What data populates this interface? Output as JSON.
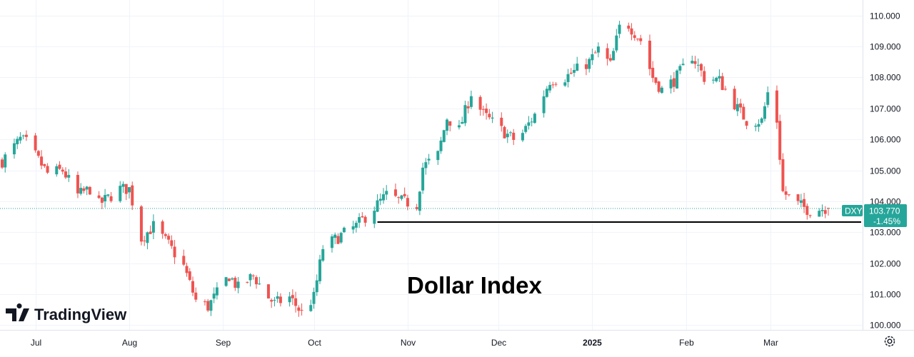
{
  "brand": {
    "name": "TradingView"
  },
  "annotation": "Dollar Index",
  "price_tag": {
    "symbol": "DXY",
    "price": "103.770",
    "change": "-1.45%"
  },
  "colors": {
    "up": "#26a69a",
    "down": "#ef5350",
    "grid": "#f0f3fa",
    "tag": "#26a69a",
    "support_line": "#000000",
    "last_price_line": "#26a69a"
  },
  "settings_icon": "gear-icon",
  "chart_data": {
    "type": "candlestick",
    "title": "",
    "instrument": "DXY",
    "y_ticks": [
      "110.000",
      "109.000",
      "108.000",
      "107.000",
      "106.000",
      "105.000",
      "104.000",
      "103.000",
      "102.000",
      "101.000",
      "100.000"
    ],
    "ylim": [
      99.85,
      110.5
    ],
    "x_ticks": [
      {
        "label": "Jul",
        "date": "2024-07-01",
        "bold": false
      },
      {
        "label": "Aug",
        "date": "2024-08-01",
        "bold": false
      },
      {
        "label": "Sep",
        "date": "2024-09-01",
        "bold": false
      },
      {
        "label": "Oct",
        "date": "2024-10-01",
        "bold": false
      },
      {
        "label": "Nov",
        "date": "2024-11-01",
        "bold": false
      },
      {
        "label": "Dec",
        "date": "2024-12-01",
        "bold": false
      },
      {
        "label": "2025",
        "date": "2025-01-01",
        "bold": true
      },
      {
        "label": "Feb",
        "date": "2025-02-01",
        "bold": false
      },
      {
        "label": "Mar",
        "date": "2025-03-01",
        "bold": false
      }
    ],
    "grid": true,
    "last_price": 103.77,
    "support_level": 103.33,
    "support_from": "2024-10-22",
    "support_to": "2025-03-20",
    "close_path": [
      [
        "2024-06-20",
        105.3
      ],
      [
        "2024-06-26",
        106.0
      ],
      [
        "2024-06-28",
        105.9
      ],
      [
        "2024-07-05",
        104.9
      ],
      [
        "2024-07-10",
        105.0
      ],
      [
        "2024-07-15",
        104.2
      ],
      [
        "2024-07-19",
        104.4
      ],
      [
        "2024-07-22",
        103.9
      ],
      [
        "2024-07-29",
        104.4
      ],
      [
        "2024-08-01",
        104.4
      ],
      [
        "2024-08-05",
        102.8
      ],
      [
        "2024-08-09",
        103.2
      ],
      [
        "2024-08-14",
        102.6
      ],
      [
        "2024-08-19",
        101.9
      ],
      [
        "2024-08-23",
        100.8
      ],
      [
        "2024-08-27",
        100.6
      ],
      [
        "2024-09-03",
        101.6
      ],
      [
        "2024-09-06",
        101.2
      ],
      [
        "2024-09-11",
        101.6
      ],
      [
        "2024-09-16",
        100.9
      ],
      [
        "2024-09-18",
        100.7
      ],
      [
        "2024-09-23",
        100.9
      ],
      [
        "2024-09-27",
        100.4
      ],
      [
        "2024-10-01",
        100.9
      ],
      [
        "2024-10-04",
        102.5
      ],
      [
        "2024-10-10",
        102.9
      ],
      [
        "2024-10-15",
        103.2
      ],
      [
        "2024-10-21",
        103.8
      ],
      [
        "2024-10-25",
        104.2
      ],
      [
        "2024-10-30",
        104.0
      ],
      [
        "2024-11-04",
        103.9
      ],
      [
        "2024-11-06",
        105.1
      ],
      [
        "2024-11-11",
        105.5
      ],
      [
        "2024-11-14",
        106.7
      ],
      [
        "2024-11-18",
        106.3
      ],
      [
        "2024-11-22",
        107.5
      ],
      [
        "2024-11-26",
        106.8
      ],
      [
        "2024-12-02",
        106.3
      ],
      [
        "2024-12-06",
        106.0
      ],
      [
        "2024-12-09",
        106.2
      ],
      [
        "2024-12-13",
        106.8
      ],
      [
        "2024-12-18",
        107.9
      ],
      [
        "2024-12-23",
        108.0
      ],
      [
        "2024-12-31",
        108.5
      ],
      [
        "2025-01-03",
        108.9
      ],
      [
        "2025-01-07",
        108.4
      ],
      [
        "2025-01-10",
        109.6
      ],
      [
        "2025-01-13",
        109.7
      ],
      [
        "2025-01-17",
        109.2
      ],
      [
        "2025-01-21",
        108.0
      ],
      [
        "2025-01-24",
        107.6
      ],
      [
        "2025-01-28",
        107.9
      ],
      [
        "2025-02-03",
        108.7
      ],
      [
        "2025-02-07",
        108.0
      ],
      [
        "2025-02-12",
        107.9
      ],
      [
        "2025-02-18",
        107.0
      ],
      [
        "2025-02-21",
        106.6
      ],
      [
        "2025-02-26",
        106.6
      ],
      [
        "2025-02-28",
        107.5
      ],
      [
        "2025-03-03",
        106.6
      ],
      [
        "2025-03-05",
        104.3
      ],
      [
        "2025-03-10",
        103.9
      ],
      [
        "2025-03-14",
        103.7
      ],
      [
        "2025-03-20",
        103.8
      ]
    ],
    "range_note": "Daily OHLC candles, Jun 2024 to Mar 2025; candle OHLC values approximated from the visible price path."
  }
}
